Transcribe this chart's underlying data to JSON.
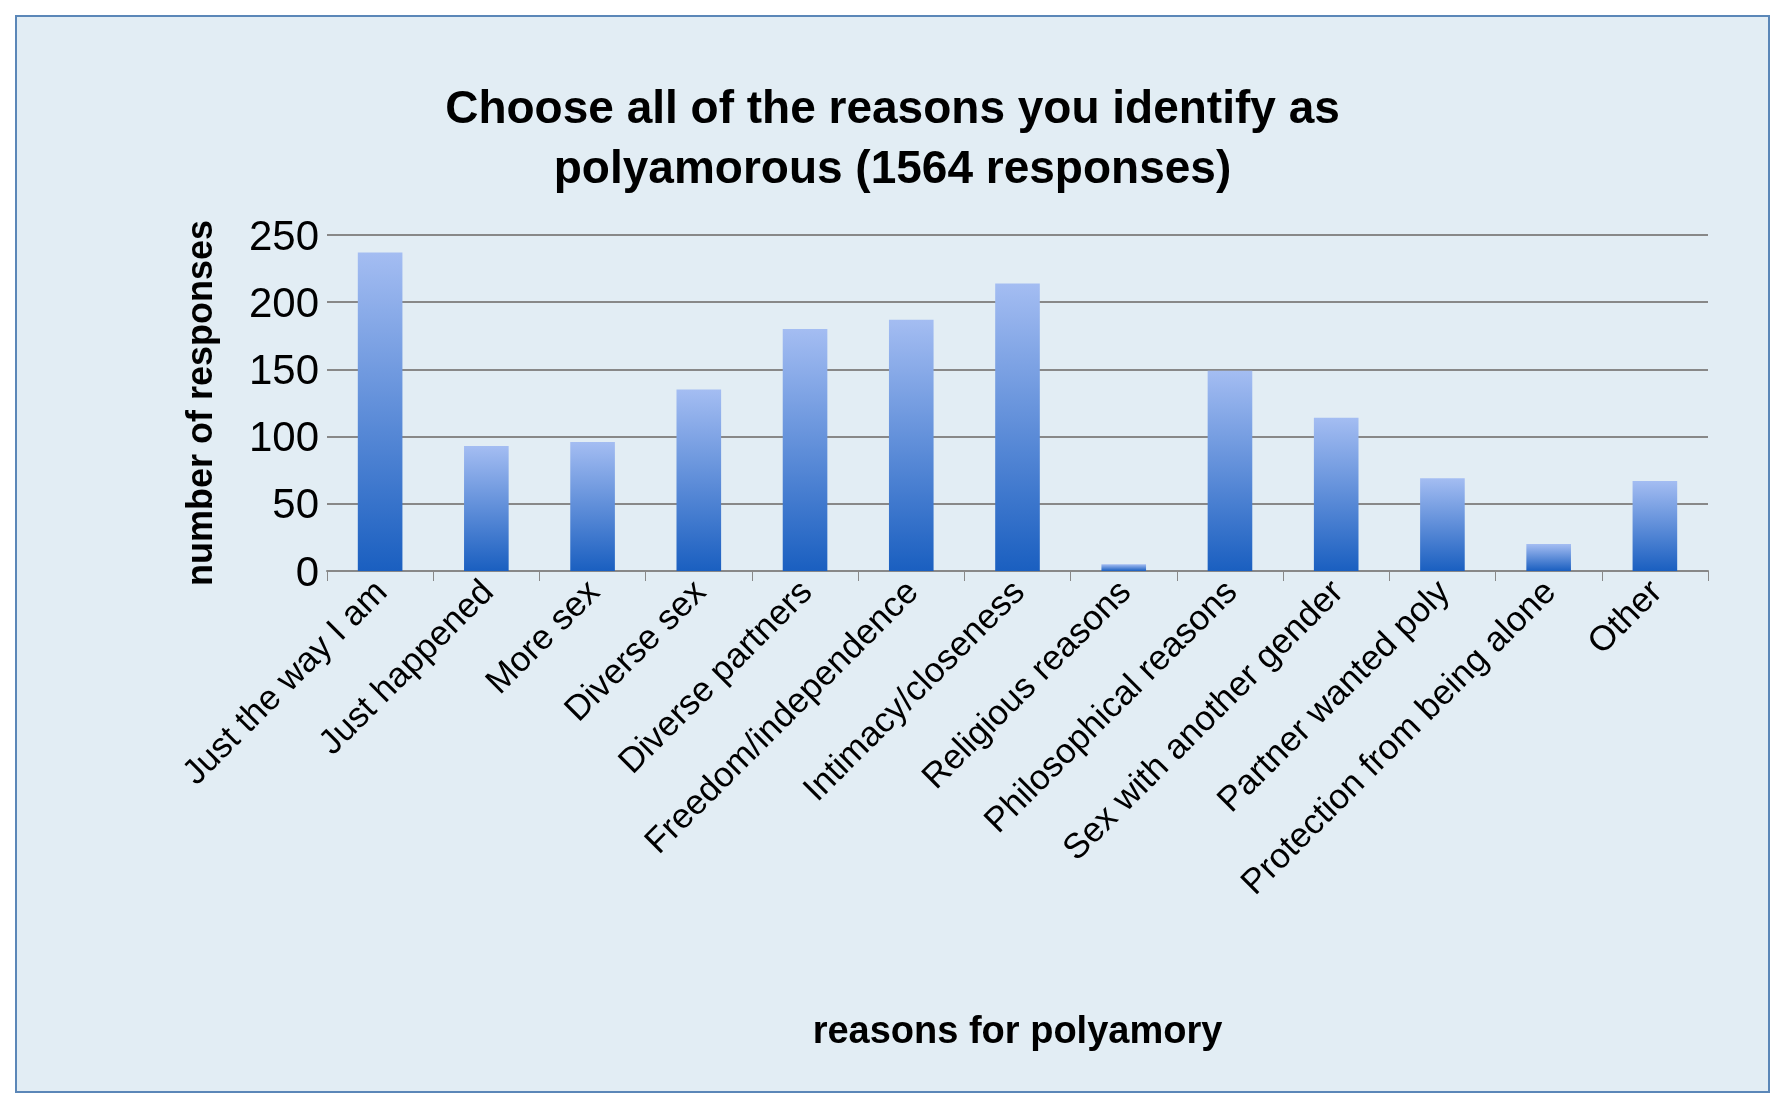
{
  "chart_data": {
    "type": "bar",
    "title": "Choose all of the reasons you identify as\npolyamorous (1564 responses)",
    "xlabel": "reasons for polyamory",
    "ylabel": "number of responses",
    "categories": [
      "Just the way I am",
      "Just happened",
      "More sex",
      "Diverse sex",
      "Diverse partners",
      "Freedom/independence",
      "Intimacy/closeness",
      "Religious reasons",
      "Philosophical reasons",
      "Sex with another gender",
      "Partner wanted poly",
      "Protection from being alone",
      "Other"
    ],
    "values": [
      237,
      93,
      96,
      135,
      180,
      187,
      214,
      5,
      149,
      114,
      69,
      20,
      67
    ],
    "color": "#1a5fc0",
    "ylim": [
      0,
      250
    ],
    "yticks": [
      0,
      50,
      100,
      150,
      200,
      250
    ],
    "grid": "y"
  }
}
